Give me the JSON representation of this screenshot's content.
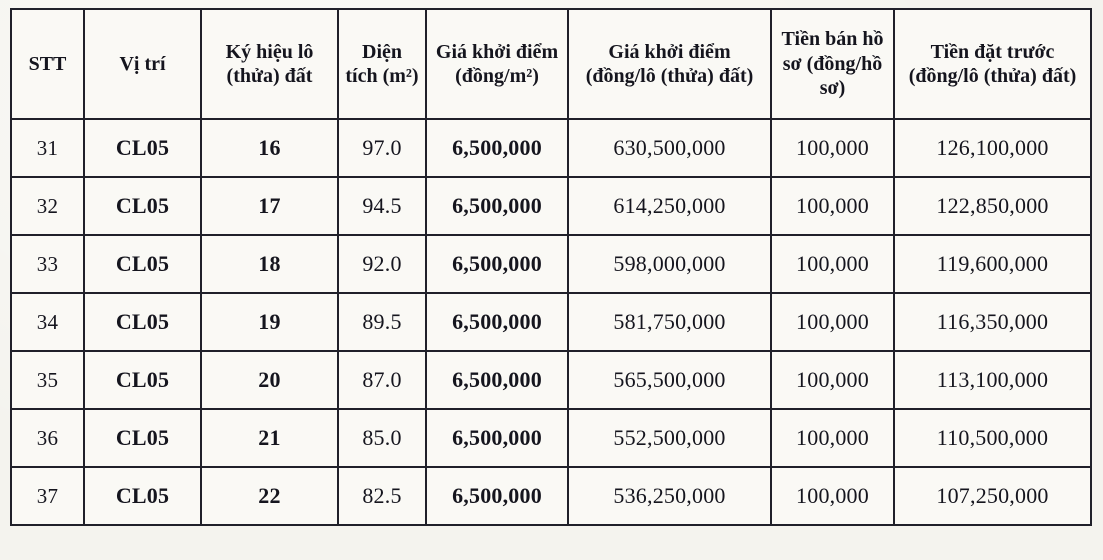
{
  "document": {
    "type": "scanned-land-auction-price-table",
    "colors": {
      "paper": "#f4f3ee",
      "table_background": "#faf9f5",
      "border": "#20202a",
      "text": "#15151e"
    },
    "table": {
      "columns": [
        {
          "key": "stt",
          "label": "STT"
        },
        {
          "key": "vi_tri",
          "label": "Vị trí"
        },
        {
          "key": "ky_hieu_lo",
          "label": "Ký hiệu lô (thửa) đất"
        },
        {
          "key": "dien_tich",
          "label": "Diện tích (m²)"
        },
        {
          "key": "gia_khoi_diem_m2",
          "label": "Giá khởi điểm (đồng/m²)"
        },
        {
          "key": "gia_khoi_diem_lo",
          "label": "Giá khởi điểm (đồng/lô (thửa) đất)"
        },
        {
          "key": "tien_ban_ho_so",
          "label": "Tiền bán hồ sơ (đồng/hồ sơ)"
        },
        {
          "key": "tien_dat_truoc",
          "label": "Tiền đặt trước (đồng/lô (thửa) đất)"
        }
      ],
      "rows": [
        [
          "31",
          "CL05",
          "16",
          "97.0",
          "6,500,000",
          "630,500,000",
          "100,000",
          "126,100,000"
        ],
        [
          "32",
          "CL05",
          "17",
          "94.5",
          "6,500,000",
          "614,250,000",
          "100,000",
          "122,850,000"
        ],
        [
          "33",
          "CL05",
          "18",
          "92.0",
          "6,500,000",
          "598,000,000",
          "100,000",
          "119,600,000"
        ],
        [
          "34",
          "CL05",
          "19",
          "89.5",
          "6,500,000",
          "581,750,000",
          "100,000",
          "116,350,000"
        ],
        [
          "35",
          "CL05",
          "20",
          "87.0",
          "6,500,000",
          "565,500,000",
          "100,000",
          "113,100,000"
        ],
        [
          "36",
          "CL05",
          "21",
          "85.0",
          "6,500,000",
          "552,500,000",
          "100,000",
          "110,500,000"
        ],
        [
          "37",
          "CL05",
          "22",
          "82.5",
          "6,500,000",
          "536,250,000",
          "100,000",
          "107,250,000"
        ]
      ]
    }
  }
}
